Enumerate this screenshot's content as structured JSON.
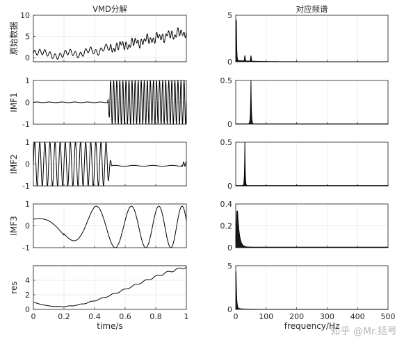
{
  "chart_data": [
    {
      "type": "line",
      "panel": "left-1",
      "title": "VMD分解",
      "ylabel": "原始数据",
      "xlim": [
        0,
        1
      ],
      "ylim": [
        -1,
        10
      ],
      "yticks": [
        0,
        5,
        10
      ],
      "grid": true,
      "x": [
        0,
        0.1,
        0.2,
        0.3,
        0.4,
        0.5,
        0.6,
        0.7,
        0.8,
        0.9,
        1.0
      ],
      "series": [
        {
          "values": [
            1.6,
            0.7,
            0.0,
            1.5,
            1.0,
            2.5,
            3.2,
            4.6,
            5.2,
            6.0,
            7.3
          ]
        }
      ],
      "note_shape": "trend plus oscillations"
    },
    {
      "type": "line",
      "panel": "right-1",
      "title": "对应频谱",
      "xlim": [
        0,
        500
      ],
      "ylim": [
        0,
        5
      ],
      "yticks": [
        0,
        5
      ],
      "grid": true,
      "x": [
        0,
        2,
        10,
        30,
        50,
        100,
        500
      ],
      "series": [
        {
          "values": [
            4.0,
            4.5,
            0.5,
            0.5,
            0.4,
            0.0,
            0.0
          ]
        }
      ]
    },
    {
      "type": "line",
      "panel": "left-2",
      "ylabel": "IMF1",
      "xlim": [
        0,
        1
      ],
      "ylim": [
        -1,
        1
      ],
      "yticks": [
        -1,
        0,
        1
      ],
      "grid": true,
      "x": [
        0,
        0.49,
        0.5,
        0.51,
        0.52,
        1.0
      ],
      "series": [
        {
          "values": [
            0,
            0,
            0.3,
            0.9,
            1.0,
            1.0
          ]
        }
      ],
      "note_shape": "flat until t≈0.5, then high-frequency ±1 oscillation (~50 Hz)"
    },
    {
      "type": "line",
      "panel": "right-2",
      "xlim": [
        0,
        500
      ],
      "ylim": [
        0,
        0.5
      ],
      "yticks": [
        0,
        0.5
      ],
      "grid": true,
      "x": [
        0,
        40,
        50,
        60,
        500
      ],
      "series": [
        {
          "values": [
            0,
            0.02,
            0.5,
            0.02,
            0
          ]
        }
      ]
    },
    {
      "type": "line",
      "panel": "left-3",
      "ylabel": "IMF2",
      "xlim": [
        0,
        1
      ],
      "ylim": [
        -1,
        1
      ],
      "yticks": [
        -1,
        0,
        1
      ],
      "grid": true,
      "x": [
        0,
        0.5,
        0.51,
        1.0
      ],
      "series": [
        {
          "values": [
            1.0,
            1.0,
            0,
            0
          ]
        }
      ],
      "note_shape": "±1 oscillation (~30 Hz) until t≈0.5, then flat"
    },
    {
      "type": "line",
      "panel": "right-3",
      "xlim": [
        0,
        500
      ],
      "ylim": [
        0,
        0.5
      ],
      "yticks": [
        0,
        0.5
      ],
      "grid": true,
      "x": [
        0,
        25,
        30,
        35,
        500
      ],
      "series": [
        {
          "values": [
            0,
            0.02,
            0.5,
            0.02,
            0
          ]
        }
      ]
    },
    {
      "type": "line",
      "panel": "left-4",
      "ylabel": "IMF3",
      "xlim": [
        0,
        1
      ],
      "ylim": [
        -1,
        1
      ],
      "yticks": [
        -1,
        0,
        1
      ],
      "grid": true,
      "x": [
        0,
        0.2,
        0.4,
        0.6,
        0.8,
        1.0
      ],
      "series": [
        {
          "values": [
            0.3,
            -0.5,
            0.7,
            0.9,
            0.9,
            1.0
          ]
        }
      ],
      "note_shape": "chirp, increasing frequency"
    },
    {
      "type": "line",
      "panel": "right-4",
      "xlim": [
        0,
        500
      ],
      "ylim": [
        0,
        0.4
      ],
      "yticks": [
        0,
        0.2,
        0.4
      ],
      "grid": true,
      "x": [
        0,
        5,
        10,
        20,
        40,
        100,
        500
      ],
      "series": [
        {
          "values": [
            0.05,
            0.33,
            0.3,
            0.05,
            0.01,
            0,
            0
          ]
        }
      ]
    },
    {
      "type": "line",
      "panel": "left-5",
      "ylabel": "res",
      "xlabel": "time/s",
      "xlim": [
        0,
        1
      ],
      "ylim": [
        0,
        6
      ],
      "yticks": [
        0,
        2,
        4
      ],
      "xticks": [
        0,
        0.2,
        0.4,
        0.6,
        0.8,
        1
      ],
      "grid": true,
      "x": [
        0,
        0.1,
        0.2,
        0.3,
        0.4,
        0.5,
        0.6,
        0.7,
        0.8,
        0.9,
        1.0
      ],
      "series": [
        {
          "values": [
            1.0,
            0.5,
            0.1,
            1.2,
            1.0,
            1.5,
            2.5,
            3.3,
            4.2,
            5.1,
            5.8
          ]
        }
      ]
    },
    {
      "type": "line",
      "panel": "right-5",
      "xlabel": "frequency/Hz",
      "xlim": [
        0,
        500
      ],
      "ylim": [
        0,
        5
      ],
      "yticks": [
        0,
        5
      ],
      "xticks": [
        0,
        100,
        200,
        300,
        400,
        500
      ],
      "grid": true,
      "x": [
        0,
        1,
        5,
        10,
        20,
        500
      ],
      "series": [
        {
          "values": [
            4.3,
            4.0,
            0.5,
            0.1,
            0.0,
            0.0
          ]
        }
      ]
    }
  ],
  "watermark": "知乎 @Mr.括号"
}
